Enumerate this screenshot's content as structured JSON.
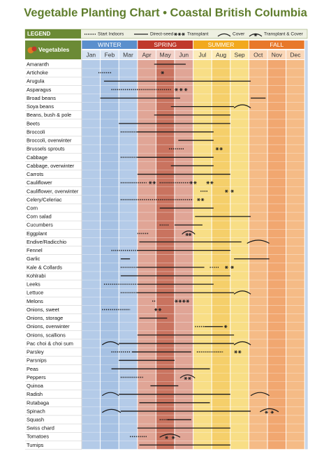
{
  "title": "Vegetable Planting Chart • Coastal British Columbia",
  "legend": {
    "label": "LEGEND",
    "indoors": "Start Indoors",
    "direct": "Direct-seed",
    "transplant": "Transplant",
    "cover": "Cover",
    "transplant_cover": "Transplant & Cover"
  },
  "header": {
    "label": "Vegetables",
    "seasons": [
      "WINTER",
      "SPRING",
      "SUMMER",
      "FALL"
    ],
    "months": [
      "Jan",
      "Feb",
      "Mar",
      "Apr",
      "May",
      "Jun",
      "Jul",
      "Aug",
      "Sep",
      "Oct",
      "Nov",
      "Dec"
    ]
  },
  "rows": [
    {
      "name": "Amaranth",
      "direct": [
        [
          3.9,
          5.6
        ]
      ]
    },
    {
      "name": "Artichoke",
      "indoors": [
        [
          0.9,
          1.6
        ]
      ],
      "transplant": [
        [
          4.2,
          4.5
        ]
      ]
    },
    {
      "name": "Arugula",
      "direct": [
        [
          1.2,
          9.1
        ]
      ]
    },
    {
      "name": "Asparagus",
      "indoors": [
        [
          1.6,
          4.8
        ]
      ],
      "transplant": [
        [
          5.0,
          5.7
        ]
      ]
    },
    {
      "name": "Broad beans",
      "direct": [
        [
          1.0,
          5.3
        ],
        [
          9.1,
          9.9
        ]
      ]
    },
    {
      "name": "Soya beans",
      "direct": [
        [
          4.8,
          8.2
        ]
      ],
      "cover": [
        [
          8.2,
          9.1
        ]
      ]
    },
    {
      "name": "Beans, bush & pole",
      "direct": [
        [
          3.9,
          8.0
        ]
      ]
    },
    {
      "name": "Beets",
      "direct": [
        [
          2.0,
          8.0
        ]
      ]
    },
    {
      "name": "Broccoli",
      "indoors": [
        [
          2.1,
          3.0
        ]
      ],
      "direct": [
        [
          3.0,
          7.1
        ]
      ]
    },
    {
      "name": "Broccoli, overwinter",
      "direct": [
        [
          5.2,
          7.1
        ]
      ]
    },
    {
      "name": "Brussels sprouts",
      "indoors": [
        [
          4.7,
          5.5
        ]
      ],
      "transplant": [
        [
          7.2,
          7.6
        ]
      ]
    },
    {
      "name": "Cabbage",
      "indoors": [
        [
          2.1,
          3.0
        ]
      ],
      "direct": [
        [
          3.0,
          7.1
        ]
      ]
    },
    {
      "name": "Cabbage, overwinter",
      "direct": [
        [
          4.8,
          7.1
        ]
      ]
    },
    {
      "name": "Carrots",
      "direct": [
        [
          3.0,
          8.0
        ]
      ]
    },
    {
      "name": "Cauliflower",
      "indoors": [
        [
          2.1,
          3.5
        ],
        [
          4.2,
          5.8
        ]
      ],
      "transplant": [
        [
          3.6,
          4.0
        ],
        [
          5.8,
          6.2
        ],
        [
          6.7,
          7.1
        ]
      ]
    },
    {
      "name": "Cauliflower, overwinter",
      "indoors": [
        [
          6.4,
          6.8
        ]
      ],
      "transplant": [
        [
          7.7,
          8.2
        ]
      ]
    },
    {
      "name": "Celery/Celeriac",
      "indoors": [
        [
          2.1,
          6.0
        ]
      ],
      "transplant": [
        [
          6.2,
          6.6
        ]
      ]
    },
    {
      "name": "Corn",
      "direct": [
        [
          4.2,
          7.1
        ]
      ]
    },
    {
      "name": "Corn salad",
      "direct": [
        [
          6.1,
          9.1
        ]
      ]
    },
    {
      "name": "Cucumbers",
      "indoors": [
        [
          4.2,
          4.7
        ]
      ],
      "direct": [
        [
          5.0,
          6.5
        ]
      ]
    },
    {
      "name": "Eggplant",
      "indoors": [
        [
          3.0,
          3.6
        ]
      ],
      "transplant_cover": [
        [
          5.4,
          6.1
        ]
      ]
    },
    {
      "name": "Endive/Radicchio",
      "direct": [
        [
          3.1,
          8.6
        ]
      ],
      "cover": [
        [
          8.9,
          10.1
        ]
      ]
    },
    {
      "name": "Fennel",
      "indoors": [
        [
          1.6,
          3.0
        ]
      ],
      "direct": [
        [
          3.0,
          8.0
        ]
      ]
    },
    {
      "name": "Garlic",
      "direct": [
        [
          2.1,
          2.6
        ],
        [
          8.2,
          10.1
        ]
      ]
    },
    {
      "name": "Kale & Collards",
      "indoors": [
        [
          2.1,
          3.0
        ],
        [
          6.9,
          7.4
        ]
      ],
      "direct": [
        [
          3.0,
          6.6
        ]
      ],
      "transplant": [
        [
          7.7,
          8.2
        ]
      ]
    },
    {
      "name": "Kohlrabi",
      "direct": [
        [
          2.1,
          8.0
        ]
      ]
    },
    {
      "name": "Leeks",
      "indoors": [
        [
          1.2,
          3.0
        ]
      ],
      "direct": [
        [
          3.0,
          7.1
        ]
      ]
    },
    {
      "name": "Lettuce",
      "indoors": [
        [
          2.1,
          3.0
        ]
      ],
      "direct": [
        [
          3.0,
          8.2
        ]
      ],
      "cover": [
        [
          8.2,
          9.1
        ]
      ]
    },
    {
      "name": "Melons",
      "indoors": [
        [
          3.8,
          4.0
        ]
      ],
      "transplant": [
        [
          5.0,
          5.8
        ]
      ]
    },
    {
      "name": "Onions, sweet",
      "indoors": [
        [
          1.1,
          2.6
        ]
      ],
      "transplant": [
        [
          3.9,
          4.3
        ]
      ]
    },
    {
      "name": "Onions, storage",
      "direct": [
        [
          3.1,
          4.6
        ]
      ]
    },
    {
      "name": "Onions, overwinter",
      "indoors": [
        [
          6.1,
          6.6
        ]
      ],
      "direct": [
        [
          6.6,
          7.6
        ]
      ],
      "transplant": [
        [
          7.6,
          7.9
        ]
      ]
    },
    {
      "name": "Onions, scallions",
      "direct": [
        [
          3.0,
          8.2
        ]
      ]
    },
    {
      "name": "Pac choi & choi sum",
      "cover": [
        [
          1.1,
          2.0
        ],
        [
          8.2,
          9.1
        ]
      ],
      "direct": [
        [
          2.0,
          8.2
        ]
      ]
    },
    {
      "name": "Parsley",
      "indoors": [
        [
          1.6,
          2.6
        ],
        [
          6.2,
          7.6
        ]
      ],
      "direct": [
        [
          2.7,
          5.9
        ]
      ],
      "transplant": [
        [
          8.2,
          8.6
        ]
      ]
    },
    {
      "name": "Parsnips",
      "direct": [
        [
          2.0,
          5.0
        ]
      ]
    },
    {
      "name": "Peas",
      "direct": [
        [
          1.6,
          6.9
        ]
      ]
    },
    {
      "name": "Peppers",
      "indoors": [
        [
          2.1,
          3.3
        ]
      ],
      "transplant_cover": [
        [
          5.3,
          6.1
        ]
      ]
    },
    {
      "name": "Quinoa",
      "direct": [
        [
          3.7,
          5.2
        ]
      ]
    },
    {
      "name": "Radish",
      "cover": [
        [
          1.1,
          2.0
        ],
        [
          9.1,
          10.1
        ]
      ],
      "direct": [
        [
          2.0,
          8.0
        ]
      ]
    },
    {
      "name": "Rutabaga",
      "direct": [
        [
          3.1,
          6.9
        ]
      ]
    },
    {
      "name": "Spinach",
      "cover": [
        [
          1.1,
          2.1
        ]
      ],
      "direct": [
        [
          2.1,
          9.1
        ]
      ],
      "transplant_cover": [
        [
          9.6,
          10.6
        ]
      ]
    },
    {
      "name": "Squash",
      "indoors": [
        [
          4.2,
          4.7
        ]
      ],
      "direct": [
        [
          4.6,
          5.9
        ]
      ]
    },
    {
      "name": "Swiss chard",
      "direct": [
        [
          3.0,
          8.0
        ]
      ]
    },
    {
      "name": "Tomatoes",
      "indoors": [
        [
          2.6,
          3.5
        ]
      ],
      "transplant_cover": [
        [
          4.2,
          5.3
        ]
      ]
    },
    {
      "name": "Turnips",
      "direct": [
        [
          3.1,
          8.0
        ]
      ]
    }
  ]
}
